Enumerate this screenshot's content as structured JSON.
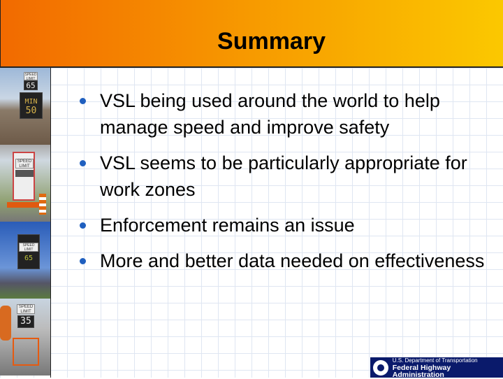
{
  "slide": {
    "title": "Summary",
    "bullets": [
      "VSL being used around the world to help manage speed and improve safety",
      "VSL seems to be particularly appropriate for work zones",
      "Enforcement remains an issue",
      "More and better data needed on effectiveness"
    ]
  },
  "photos": [
    {
      "sign_label": "SPEED LIMIT",
      "sign_value": "65",
      "lower_label": "MIN",
      "lower_value": "50"
    },
    {
      "sign_label": "SPEED LIMIT"
    },
    {
      "sign_label": "SPEED LIMIT",
      "sign_value": "65"
    },
    {
      "sign_label": "SPEED LIMIT",
      "sign_value": "35"
    }
  ],
  "logo": {
    "line1": "U.S. Department of Transportation",
    "line2": "Federal Highway Administration"
  },
  "colors": {
    "header_start": "#f26a00",
    "header_end": "#fbc800",
    "bullet": "#1f5fbf",
    "logo_bg": "#0a1a6b"
  }
}
